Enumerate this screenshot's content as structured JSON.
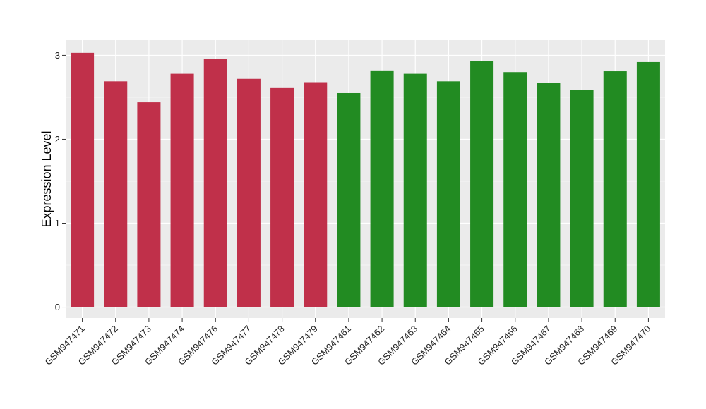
{
  "chart_data": {
    "type": "bar",
    "title": "",
    "xlabel": "",
    "ylabel": "Expression Level",
    "ylim": [
      -0.13,
      3.18
    ],
    "yticks": [
      0,
      1,
      2,
      3
    ],
    "ytick_labels": [
      "0",
      "1",
      "2",
      "3"
    ],
    "grid": true,
    "legend": "none",
    "categories": [
      "GSM947471",
      "GSM947472",
      "GSM947473",
      "GSM947474",
      "GSM947476",
      "GSM947477",
      "GSM947478",
      "GSM947479",
      "GSM947461",
      "GSM947462",
      "GSM947463",
      "GSM947464",
      "GSM947465",
      "GSM947466",
      "GSM947467",
      "GSM947468",
      "GSM947469",
      "GSM947470"
    ],
    "values": [
      3.03,
      2.69,
      2.44,
      2.78,
      2.96,
      2.72,
      2.61,
      2.68,
      2.55,
      2.82,
      2.78,
      2.69,
      2.93,
      2.8,
      2.67,
      2.59,
      2.81,
      2.92
    ],
    "bar_colors": [
      "#c0304a",
      "#c0304a",
      "#c0304a",
      "#c0304a",
      "#c0304a",
      "#c0304a",
      "#c0304a",
      "#c0304a",
      "#228b22",
      "#228b22",
      "#228b22",
      "#228b22",
      "#228b22",
      "#228b22",
      "#228b22",
      "#228b22",
      "#228b22",
      "#228b22"
    ],
    "panel_background": "#ebebeb",
    "gridline_color": "#ffffff"
  }
}
